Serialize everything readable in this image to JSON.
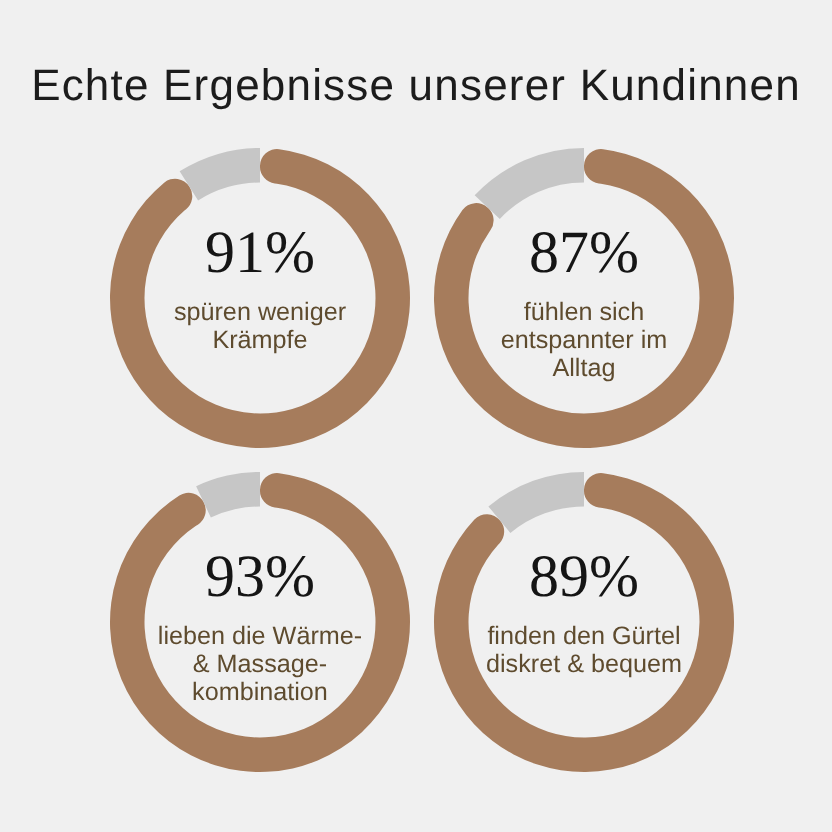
{
  "chart_data": [
    {
      "type": "other",
      "title": "Echte Ergebnisse unserer Kundinnen"
    },
    {
      "type": "donut",
      "categories": [
        "spüren weniger Krämpfe",
        null
      ],
      "values": [
        91,
        9
      ],
      "colors": [
        "#a67c5c",
        "#c6c6c6"
      ],
      "value_labels": [
        "91%",
        null
      ]
    },
    {
      "type": "donut",
      "categories": [
        "fühlen sich entspannter im Alltag",
        null
      ],
      "values": [
        87,
        13
      ],
      "colors": [
        "#a67c5c",
        "#c6c6c6"
      ],
      "value_labels": [
        "87%",
        null
      ]
    },
    {
      "type": "donut",
      "categories": [
        "lieben die Wärme- & Massage-kombination",
        null
      ],
      "values": [
        93,
        7
      ],
      "colors": [
        "#a67c5c",
        "#c6c6c6"
      ],
      "value_labels": [
        "93%",
        null
      ]
    },
    {
      "type": "donut",
      "categories": [
        "finden den Gürtel diskret & bequem",
        null
      ],
      "values": [
        89,
        11
      ],
      "colors": [
        "#a67c5c",
        "#c6c6c6"
      ],
      "value_labels": [
        "89%",
        null
      ]
    }
  ]
}
